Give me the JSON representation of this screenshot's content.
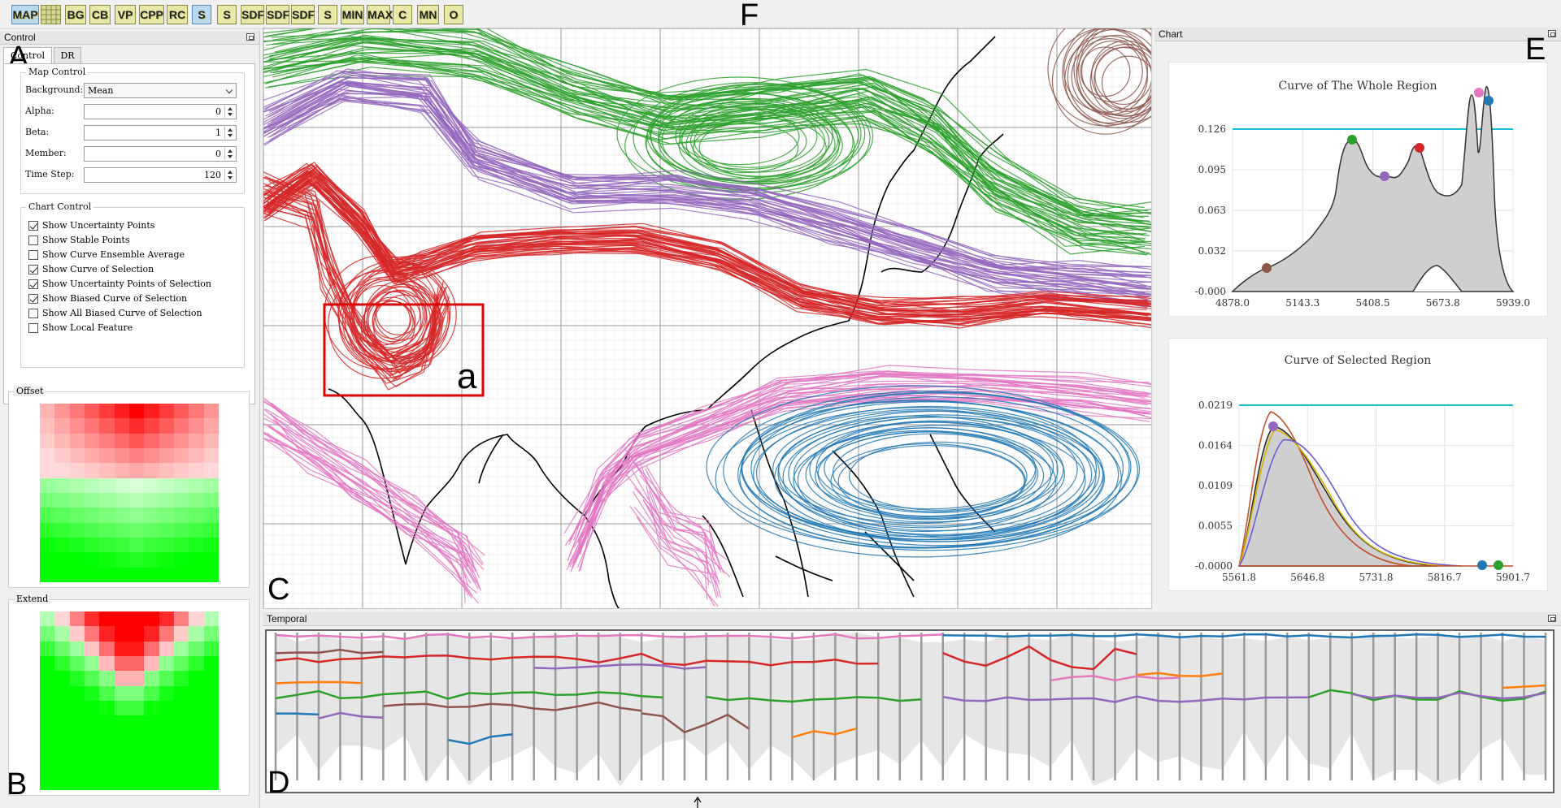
{
  "toolbar": {
    "buttons": [
      "MAP",
      "",
      "BG",
      "CB",
      "VP",
      "CPP",
      "RC",
      "S",
      "S",
      "SDF",
      "SDF",
      "SDF",
      "S",
      "MIN",
      "MAX",
      "C",
      "MN",
      "O"
    ]
  },
  "figure_letters": {
    "A": "A",
    "B": "B",
    "C": "C",
    "D": "D",
    "E": "E",
    "F": "F",
    "a": "a"
  },
  "control": {
    "title": "Control",
    "tabs": [
      "Control",
      "DR"
    ],
    "map_control": {
      "title": "Map Control",
      "background_label": "Background:",
      "background_value": "Mean",
      "alpha_label": "Alpha:",
      "alpha_value": "0",
      "beta_label": "Beta:",
      "beta_value": "1",
      "member_label": "Member:",
      "member_value": "0",
      "timestep_label": "Time Step:",
      "timestep_value": "120"
    },
    "chart_control": {
      "title": "Chart Control",
      "options": [
        {
          "label": "Show Uncertainty Points",
          "checked": true
        },
        {
          "label": "Show Stable Points",
          "checked": false
        },
        {
          "label": "Show Curve Ensemble Average",
          "checked": false
        },
        {
          "label": "Show Curve of Selection",
          "checked": true
        },
        {
          "label": "Show Uncertainty Points of Selection",
          "checked": true
        },
        {
          "label": "Show Biased Curve of Selection",
          "checked": true
        },
        {
          "label": "Show All Biased Curve of Selection",
          "checked": false
        },
        {
          "label": "Show Local Feature",
          "checked": false
        }
      ]
    },
    "offset_title": "Offset",
    "extend_title": "Extend"
  },
  "map": {
    "title": ""
  },
  "chart": {
    "title": "Chart",
    "whole": {
      "title": "Curve of The Whole Region",
      "yticks": [
        "0.126",
        "0.095",
        "0.063",
        "0.032",
        "-0.000"
      ],
      "xticks": [
        "4878.0",
        "5143.3",
        "5408.5",
        "5673.8",
        "5939.0"
      ]
    },
    "selected": {
      "title": "Curve of Selected Region",
      "yticks": [
        "0.0219",
        "0.0164",
        "0.0109",
        "0.0055",
        "-0.0000"
      ],
      "xticks": [
        "5561.8",
        "5646.8",
        "5731.8",
        "5816.7",
        "5901.7"
      ]
    }
  },
  "temporal": {
    "title": "Temporal"
  },
  "colors": {
    "green": "#2ca02c",
    "purple": "#9467bd",
    "red": "#d62728",
    "pink": "#e377c2",
    "blue": "#1f77b4",
    "brown": "#8c564b",
    "orange": "#ff7f0e",
    "teal": "#17becf"
  }
}
